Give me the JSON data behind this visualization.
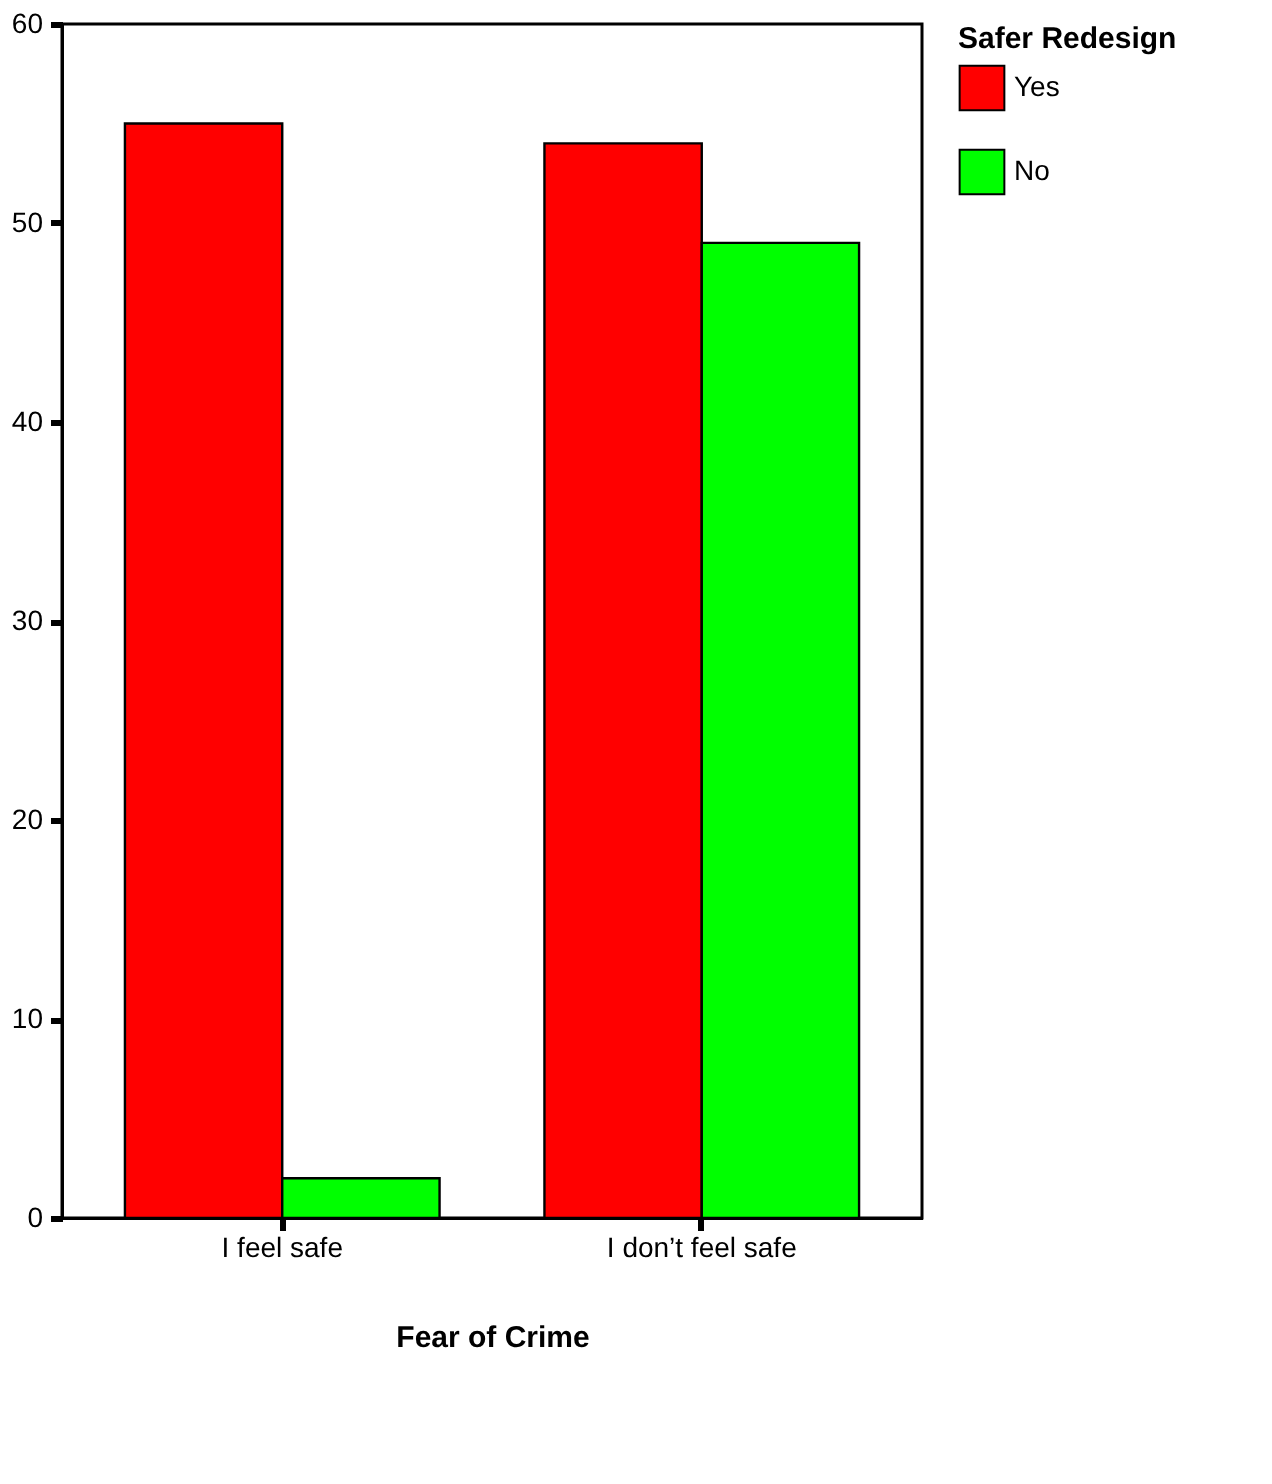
{
  "chart_data": {
    "type": "bar",
    "xlabel": "Fear of Crime",
    "legend_title": "Safer Redesign",
    "categories": [
      "I feel safe",
      "I don’t feel safe"
    ],
    "series": [
      {
        "name": "Yes",
        "color": "#ff0000",
        "values": [
          55,
          54
        ]
      },
      {
        "name": "No",
        "color": "#00ff00",
        "values": [
          2,
          49
        ]
      }
    ],
    "ylim": [
      0,
      60
    ],
    "yticks": [
      0,
      10,
      20,
      30,
      40,
      50,
      60
    ],
    "grid": false,
    "legend": "right"
  }
}
